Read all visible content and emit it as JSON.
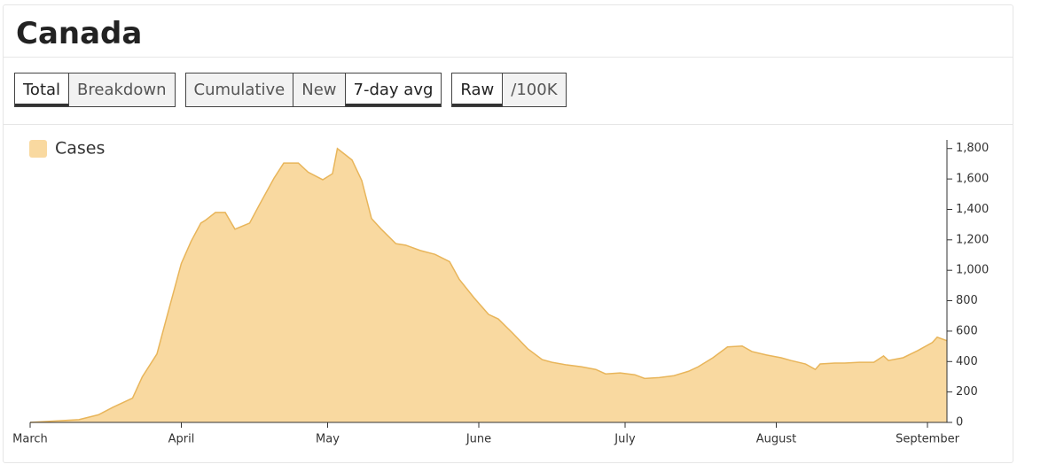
{
  "header": {
    "title": "Canada"
  },
  "controls": [
    [
      {
        "label": "Total",
        "selected": true
      },
      {
        "label": "Breakdown",
        "selected": false
      }
    ],
    [
      {
        "label": "Cumulative",
        "selected": false
      },
      {
        "label": "New",
        "selected": false
      },
      {
        "label": "7-day avg",
        "selected": true
      }
    ],
    [
      {
        "label": "Raw",
        "selected": true
      },
      {
        "label": "/100K",
        "selected": false
      }
    ]
  ],
  "chart_data": {
    "type": "area",
    "x": [
      0,
      10,
      14,
      17,
      21,
      23,
      26,
      28,
      31,
      33,
      35,
      36,
      38,
      40,
      42,
      45,
      47,
      50,
      52,
      55,
      57,
      60,
      62,
      63,
      66,
      68,
      70,
      72,
      75,
      77,
      80,
      83,
      86,
      88,
      91,
      94,
      96,
      99,
      102,
      105,
      107,
      110,
      113,
      116,
      118,
      121,
      124,
      126,
      129,
      132,
      135,
      137,
      140,
      143,
      146,
      148,
      151,
      154,
      156,
      159,
      161,
      162,
      165,
      167,
      170,
      173,
      175,
      176,
      179,
      182,
      185,
      186,
      188
    ],
    "series": [
      {
        "name": "Cases",
        "color": "#f9d9a0",
        "line_color": "#e8b55a",
        "values": [
          0,
          18,
          50,
          100,
          160,
          300,
          450,
          690,
          1045,
          1190,
          1310,
          1330,
          1380,
          1380,
          1270,
          1310,
          1430,
          1605,
          1705,
          1705,
          1645,
          1595,
          1635,
          1800,
          1725,
          1590,
          1340,
          1270,
          1175,
          1165,
          1130,
          1105,
          1057,
          940,
          820,
          710,
          680,
          585,
          485,
          413,
          395,
          378,
          366,
          348,
          319,
          325,
          313,
          289,
          295,
          307,
          336,
          366,
          425,
          496,
          502,
          466,
          443,
          425,
          407,
          384,
          348,
          384,
          390,
          390,
          395,
          395,
          437,
          407,
          425,
          472,
          525,
          560,
          537
        ]
      }
    ],
    "xlim": [
      0,
      188
    ],
    "xticks": [
      {
        "value": 0,
        "label": "March"
      },
      {
        "value": 31,
        "label": "April"
      },
      {
        "value": 61,
        "label": "May"
      },
      {
        "value": 92,
        "label": "June"
      },
      {
        "value": 122,
        "label": "July"
      },
      {
        "value": 153,
        "label": "August"
      },
      {
        "value": 184,
        "label": "September"
      }
    ],
    "ylim": [
      0,
      1880
    ],
    "yticks": [
      0,
      200,
      400,
      600,
      800,
      {
        "value": 1000,
        "label": "1,000"
      },
      {
        "value": 1200,
        "label": "1,200"
      },
      {
        "value": 1400,
        "label": "1,400"
      },
      {
        "value": 1600,
        "label": "1,600"
      },
      {
        "value": 1800,
        "label": "1,800"
      }
    ],
    "legend": "top-left"
  }
}
